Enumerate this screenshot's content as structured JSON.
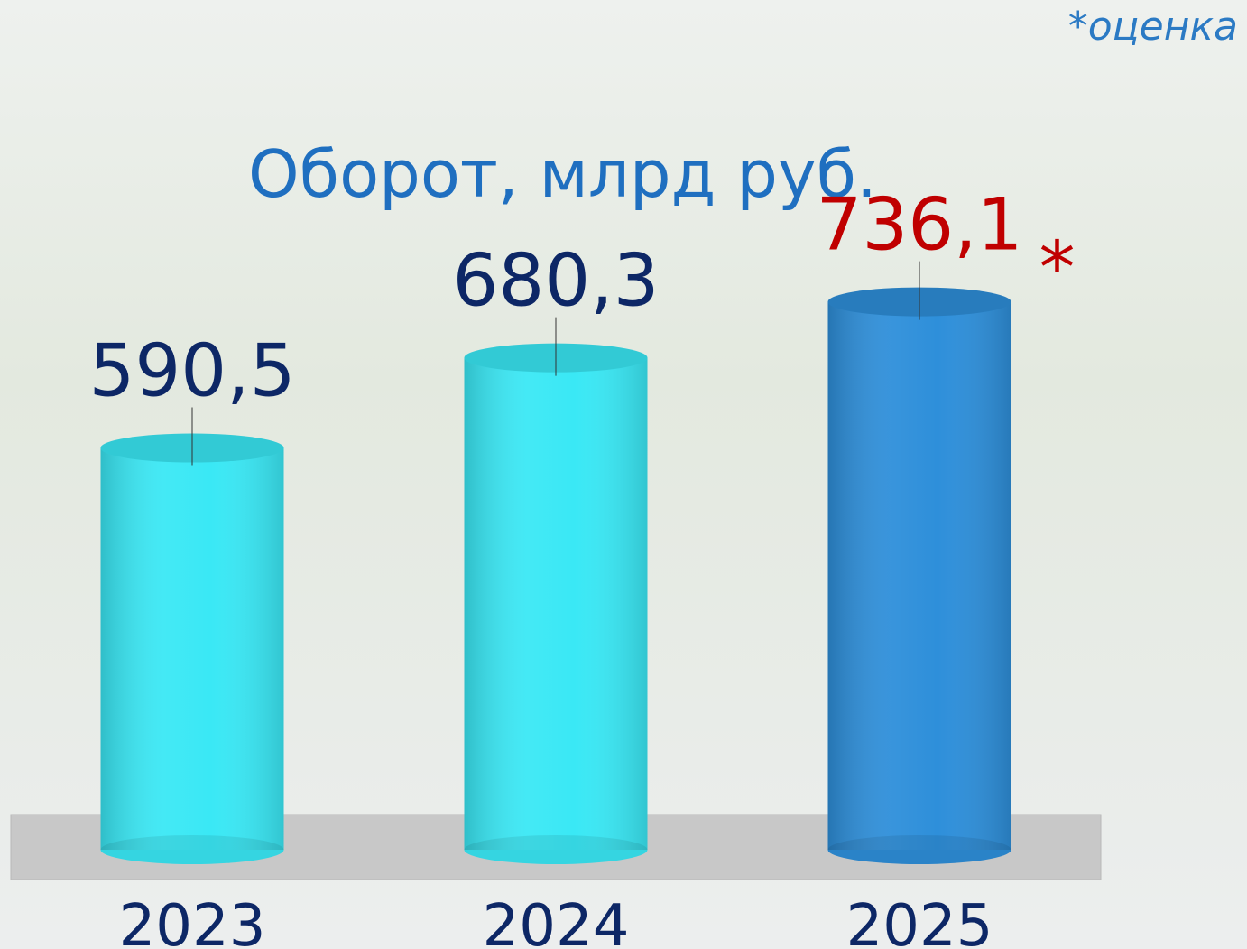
{
  "chart_data": {
    "type": "cylinder",
    "title": "Оборот, млрд руб.",
    "annotations": [
      "*оценка",
      "*"
    ],
    "categories": [
      "2023",
      "2024",
      "2025"
    ],
    "values": [
      590.5,
      680.3,
      736.1
    ],
    "value_labels": [
      "590,5",
      "680,3",
      "736,1"
    ],
    "colors": [
      "#3ae8f5",
      "#3ae8f5",
      "#2e8fda"
    ],
    "label_colors": [
      "#0d2766",
      "#0d2766",
      "#c00000"
    ],
    "ylim": [
      190,
      760
    ]
  }
}
